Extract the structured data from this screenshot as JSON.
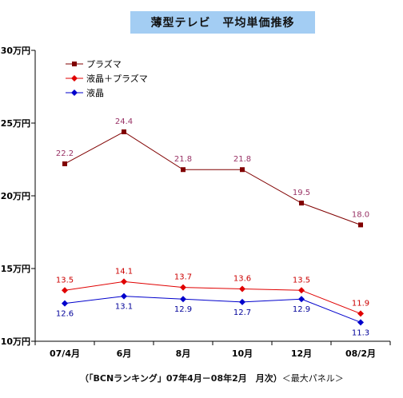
{
  "chart_data": {
    "type": "line",
    "title": "薄型テレビ　平均単価推移",
    "categories": [
      "07/4月",
      "6月",
      "8月",
      "10月",
      "12月",
      "08/2月"
    ],
    "y_ticks": [
      "30万円",
      "25万円",
      "20万円",
      "15万円",
      "10万円"
    ],
    "y_tick_values": [
      30,
      25,
      20,
      15,
      10
    ],
    "ylim": [
      10,
      30
    ],
    "xlabel": "",
    "ylabel": "",
    "grid": false,
    "legend_position": "top-left",
    "series": [
      {
        "name": "プラズマ",
        "color": "#800000",
        "label_color": "#993366",
        "marker": "square",
        "values": [
          22.2,
          24.4,
          21.8,
          21.8,
          19.5,
          18.0
        ],
        "labels": [
          "22.2",
          "24.4",
          "21.8",
          "21.8",
          "19.5",
          "18.0"
        ],
        "label_pos": "above"
      },
      {
        "name": "液晶＋プラズマ",
        "color": "#e00000",
        "label_color": "#cc0000",
        "marker": "diamond",
        "values": [
          13.5,
          14.1,
          13.7,
          13.6,
          13.5,
          11.9
        ],
        "labels": [
          "13.5",
          "14.1",
          "13.7",
          "13.6",
          "13.5",
          "11.9"
        ],
        "label_pos": "above"
      },
      {
        "name": "液晶",
        "color": "#0000cc",
        "label_color": "#000099",
        "marker": "diamond",
        "values": [
          12.6,
          13.1,
          12.9,
          12.7,
          12.9,
          11.3
        ],
        "labels": [
          "12.6",
          "13.1",
          "12.9",
          "12.7",
          "12.9",
          "11.3"
        ],
        "label_pos": "below"
      }
    ]
  },
  "source": {
    "prefix": "（「BCNランキング」07年4月－08年2月　月次）",
    "suffix": "＜最大パネル＞"
  }
}
